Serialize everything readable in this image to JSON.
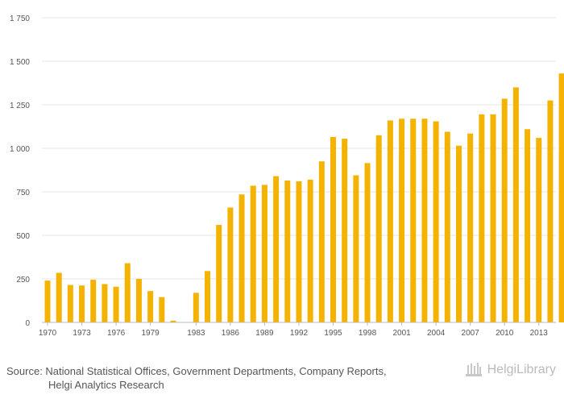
{
  "chart_data": {
    "type": "bar",
    "years": [
      1970,
      1971,
      1972,
      1973,
      1974,
      1975,
      1976,
      1977,
      1978,
      1979,
      1980,
      1981,
      1982,
      1983,
      1984,
      1985,
      1986,
      1987,
      1988,
      1989,
      1990,
      1991,
      1992,
      1993,
      1994,
      1995,
      1996,
      1997,
      1998,
      1999,
      2000,
      2001,
      2002,
      2003,
      2004,
      2005,
      2006,
      2007,
      2008,
      2009,
      2010,
      2011,
      2012,
      2013,
      2014,
      2015
    ],
    "values": [
      240,
      285,
      215,
      212,
      245,
      220,
      205,
      340,
      250,
      180,
      145,
      10,
      0,
      170,
      295,
      560,
      660,
      735,
      785,
      790,
      840,
      815,
      810,
      820,
      925,
      1065,
      1055,
      845,
      915,
      1075,
      1160,
      1170,
      1170,
      1170,
      1155,
      1095,
      1015,
      1085,
      1195,
      1195,
      1285,
      1350,
      1110,
      1060,
      1275,
      1430
    ],
    "x_tick_labels": [
      "1970",
      "1973",
      "1976",
      "1979",
      "1983",
      "1986",
      "1989",
      "1992",
      "1995",
      "1998",
      "2001",
      "2004",
      "2007",
      "2010",
      "2013"
    ],
    "y_ticks": [
      0,
      250,
      500,
      750,
      1000,
      1250,
      1500,
      1750
    ],
    "y_tick_labels": [
      "0",
      "250",
      "500",
      "750",
      "1 000",
      "1 250",
      "1 500",
      "1 750"
    ],
    "ylim": [
      0,
      1750
    ],
    "color": "#f5b301",
    "grid": true
  },
  "footer": {
    "source_line1": "Source: National Statistical Offices, Government Departments, Company Reports,",
    "source_line2": "Helgi Analytics Research",
    "brand": "HelgiLibrary"
  }
}
